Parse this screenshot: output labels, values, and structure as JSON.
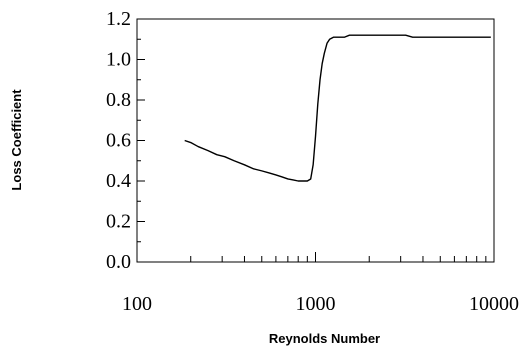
{
  "chart_data": {
    "type": "line",
    "title": "",
    "xlabel": "Reynolds Number",
    "ylabel": "Loss Coefficient",
    "xscale": "log",
    "xlim": [
      100,
      10000
    ],
    "ylim": [
      0.0,
      1.2
    ],
    "x_ticks": [
      100,
      1000,
      10000
    ],
    "x_tick_labels": [
      "100",
      "1000",
      "10000"
    ],
    "y_ticks": [
      0.0,
      0.2,
      0.4,
      0.6,
      0.8,
      1.0,
      1.2
    ],
    "y_tick_labels": [
      "0.0",
      "0.2",
      "0.4",
      "0.6",
      "0.8",
      "1.0",
      "1.2"
    ],
    "grid": false,
    "legend": "none",
    "line_color": "#000000",
    "series": [
      {
        "x": [
          185,
          200,
          220,
          250,
          280,
          310,
          350,
          400,
          450,
          500,
          550,
          600,
          650,
          700,
          750,
          800,
          850,
          900,
          940,
          970,
          1000,
          1030,
          1060,
          1090,
          1120,
          1160,
          1200,
          1260,
          1350,
          1450,
          1550,
          1700,
          2000,
          2500,
          3000,
          3200,
          3500,
          4500,
          6000,
          8000,
          9600
        ],
        "y": [
          0.6,
          0.59,
          0.57,
          0.55,
          0.53,
          0.52,
          0.5,
          0.48,
          0.46,
          0.45,
          0.44,
          0.43,
          0.42,
          0.41,
          0.405,
          0.4,
          0.4,
          0.4,
          0.41,
          0.48,
          0.62,
          0.78,
          0.9,
          0.98,
          1.03,
          1.08,
          1.1,
          1.11,
          1.11,
          1.11,
          1.12,
          1.12,
          1.12,
          1.12,
          1.12,
          1.12,
          1.11,
          1.11,
          1.11,
          1.11,
          1.11
        ]
      }
    ]
  }
}
